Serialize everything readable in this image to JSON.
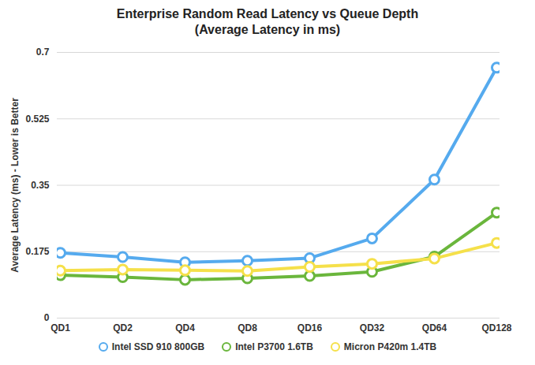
{
  "chart_data": {
    "type": "line",
    "title": "Enterprise Random Read Latency vs Queue Depth",
    "subtitle": "(Average Latency in ms)",
    "y_label": "Average Latency (ms) - Lower is Better",
    "categories": [
      "QD1",
      "QD2",
      "QD4",
      "QD8",
      "QD16",
      "QD32",
      "QD64",
      "QD128"
    ],
    "series": [
      {
        "name": "Intel SSD 910 800GB",
        "color": "#55aaee",
        "marker": "circle",
        "line_style": "solid",
        "values": [
          0.172,
          0.161,
          0.147,
          0.151,
          0.158,
          0.21,
          0.365,
          0.66
        ]
      },
      {
        "name": "Intel P3700 1.6TB",
        "color": "#6ab63c",
        "marker": "circle",
        "line_style": "solid",
        "values": [
          0.113,
          0.108,
          0.101,
          0.105,
          0.111,
          0.122,
          0.162,
          0.278
        ]
      },
      {
        "name": "Micron P420m 1.4TB",
        "color": "#f5e04a",
        "marker": "circle",
        "line_style": "solid",
        "values": [
          0.125,
          0.128,
          0.126,
          0.124,
          0.135,
          0.143,
          0.157,
          0.198
        ]
      }
    ],
    "ylim": [
      0,
      0.7
    ],
    "yticks": [
      0,
      0.175,
      0.35,
      0.525,
      0.7
    ],
    "grid": true,
    "legend": "bottom"
  }
}
